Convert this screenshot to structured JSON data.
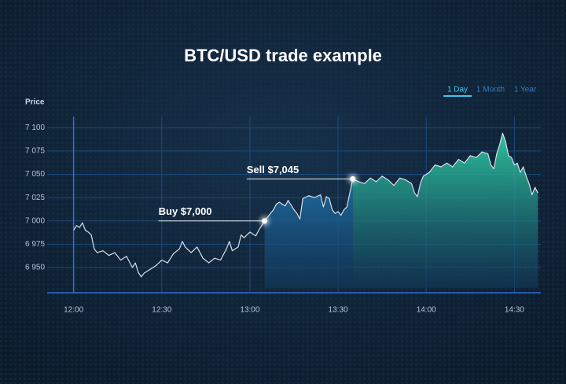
{
  "chart_data": {
    "type": "line",
    "title": "BTC/USD trade example",
    "y_label": "Price",
    "range_tabs": [
      "1 Day",
      "1 Month",
      "1 Year"
    ],
    "active_tab": "1 Day",
    "x": [
      720,
      721,
      722,
      723,
      724,
      725,
      726,
      727,
      728,
      730,
      732,
      734,
      736,
      738,
      740,
      741,
      742,
      743,
      744,
      746,
      748,
      750,
      752,
      754,
      756,
      757,
      758,
      760,
      762,
      764,
      766,
      768,
      770,
      772,
      773,
      774,
      776,
      777,
      778,
      780,
      782,
      783,
      785,
      786,
      788,
      789,
      790,
      792,
      793,
      795,
      796,
      797,
      798,
      800,
      802,
      804,
      805,
      806,
      807,
      808,
      809,
      810,
      811,
      812,
      813,
      814,
      815,
      817,
      819,
      821,
      823,
      825,
      827,
      829,
      831,
      833,
      835,
      836,
      837,
      838,
      839,
      841,
      843,
      845,
      847,
      849,
      851,
      853,
      855,
      857,
      859,
      861,
      862,
      863,
      864,
      865,
      866,
      867,
      868,
      869,
      870,
      871,
      872,
      873,
      874,
      875,
      876,
      877,
      878
    ],
    "values": [
      6990,
      6995,
      6993,
      6998,
      6990,
      6988,
      6985,
      6970,
      6966,
      6968,
      6963,
      6966,
      6958,
      6962,
      6950,
      6955,
      6945,
      6940,
      6944,
      6948,
      6952,
      6958,
      6955,
      6965,
      6970,
      6978,
      6972,
      6966,
      6972,
      6960,
      6955,
      6960,
      6958,
      6970,
      6978,
      6968,
      6972,
      6985,
      6982,
      6988,
      6984,
      6990,
      7000,
      7004,
      7012,
      7018,
      7020,
      7016,
      7022,
      7012,
      7008,
      7002,
      7024,
      7027,
      7025,
      7028,
      7015,
      7026,
      7024,
      7012,
      7008,
      7010,
      7006,
      7012,
      7015,
      7030,
      7045,
      7042,
      7040,
      7046,
      7042,
      7048,
      7044,
      7038,
      7046,
      7044,
      7040,
      7030,
      7026,
      7040,
      7048,
      7052,
      7060,
      7058,
      7062,
      7058,
      7066,
      7062,
      7070,
      7068,
      7074,
      7072,
      7060,
      7056,
      7072,
      7082,
      7094,
      7085,
      7070,
      7068,
      7060,
      7062,
      7052,
      7058,
      7048,
      7040,
      7028,
      7036,
      7030
    ],
    "color": "#d6e0ea",
    "xlim": [
      711,
      879
    ],
    "xticks": [
      {
        "value": 720,
        "label": "12:00"
      },
      {
        "value": 750,
        "label": "12:30"
      },
      {
        "value": 780,
        "label": "13:00"
      },
      {
        "value": 810,
        "label": "13:30"
      },
      {
        "value": 840,
        "label": "14:00"
      },
      {
        "value": 870,
        "label": "14:30"
      }
    ],
    "ylim": [
      6923,
      7112
    ],
    "yticks": [
      {
        "value": 6950,
        "label": "6 950"
      },
      {
        "value": 6975,
        "label": "6 975"
      },
      {
        "value": 7000,
        "label": "7 000"
      },
      {
        "value": 7025,
        "label": "7 025"
      },
      {
        "value": 7050,
        "label": "7 050"
      },
      {
        "value": 7075,
        "label": "7 075"
      },
      {
        "value": 7100,
        "label": "7 100"
      }
    ],
    "grid": true,
    "annotations": [
      {
        "text": "Buy $7,000",
        "x": 785,
        "y": 7000,
        "fill": "#1f6fa6"
      },
      {
        "text": "Sell $7,045",
        "x": 815,
        "y": 7045,
        "fill": "#2fc9a0"
      }
    ]
  }
}
